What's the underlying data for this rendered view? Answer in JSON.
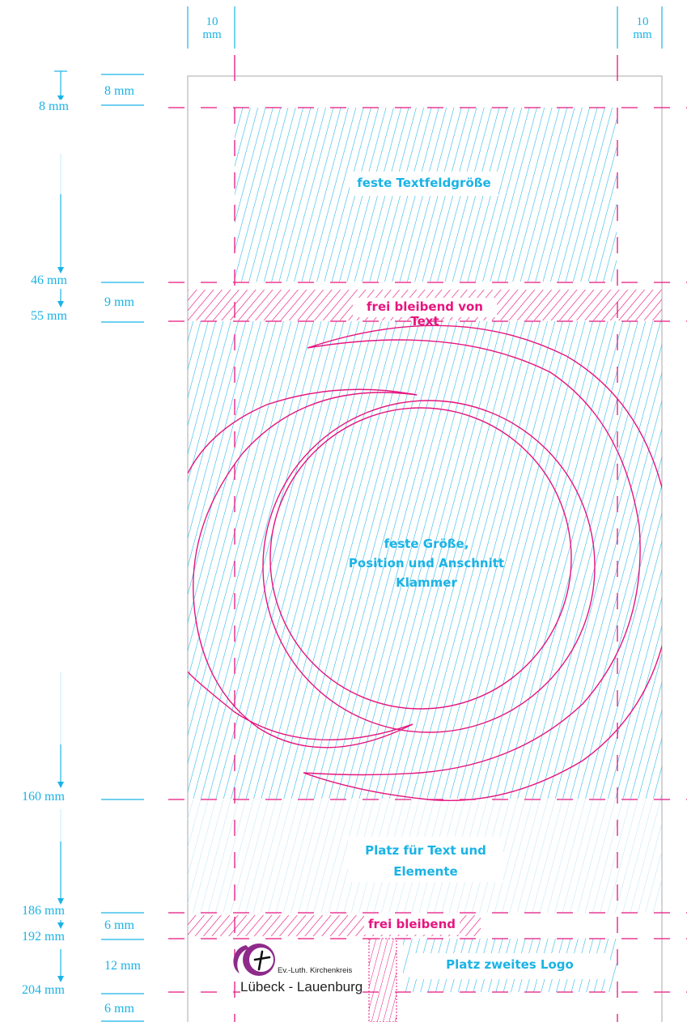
{
  "colors": {
    "cyan": "#1ab3e6",
    "cyan_light": "#a9dff3",
    "magenta": "#e6157f",
    "purple_logo": "#8e2a8a",
    "frame": "#b8b8b8",
    "text_dark": "#222222"
  },
  "margins": {
    "left_label_num": "10",
    "left_label_unit": "mm",
    "right_label_num": "10",
    "right_label_unit": "mm"
  },
  "left_rulers": [
    {
      "id": "m8",
      "text": "8 mm"
    },
    {
      "id": "m46",
      "text": "46 mm"
    },
    {
      "id": "m55",
      "text": "55 mm"
    },
    {
      "id": "m160",
      "text": "160 mm"
    },
    {
      "id": "m186",
      "text": "186 mm"
    },
    {
      "id": "m192",
      "text": "192 mm"
    },
    {
      "id": "m204",
      "text": "204 mm"
    }
  ],
  "spacing_labels": [
    {
      "id": "s8",
      "text": "8 mm"
    },
    {
      "id": "s9",
      "text": "9 mm"
    },
    {
      "id": "s6a",
      "text": "6 mm"
    },
    {
      "id": "s12",
      "text": "12 mm"
    },
    {
      "id": "s6b",
      "text": "6 mm"
    }
  ],
  "zones": {
    "text_field": "feste Textfeldgröße",
    "free_text": "frei bleibend von Text",
    "bracket_line1": "feste Größe,",
    "bracket_line2": "Position und Anschnitt",
    "bracket_line3": "Klammer",
    "space_line1": "Platz für Text und",
    "space_line2": "Elemente",
    "free": "frei bleibend",
    "second_logo": "Platz zweites Logo"
  },
  "logo": {
    "small_text": "Ev.-Luth. Kirchenkreis",
    "big_text": "Lübeck - Lauenburg",
    "icon": "cross-swirl-icon"
  }
}
